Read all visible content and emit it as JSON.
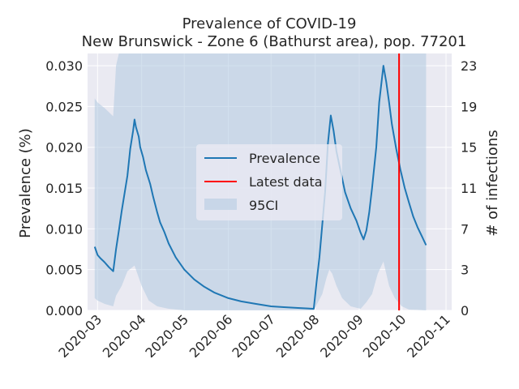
{
  "chart_data": {
    "type": "line",
    "title": "Prevalence of COVID-19",
    "subtitle": "New Brunswick - Zone 6 (Bathurst area), pop. 77201",
    "ylabel": "Prevalence (%)",
    "y2label": "# of infections",
    "xlabel": "",
    "x_ticks": [
      "2020-03",
      "2020-04",
      "2020-05",
      "2020-06",
      "2020-07",
      "2020-08",
      "2020-09",
      "2020-10",
      "2020-11"
    ],
    "y_ticks": [
      "0.000",
      "0.005",
      "0.010",
      "0.015",
      "0.020",
      "0.025",
      "0.030"
    ],
    "y2_ticks": [
      "0",
      "3",
      "7",
      "11",
      "15",
      "19",
      "23"
    ],
    "ylim": [
      0,
      0.0315
    ],
    "xlim": [
      "2020-02-23",
      "2020-11-05"
    ],
    "grid": true,
    "legend_position": "center",
    "latest_data_date": "2020-09-29",
    "series": [
      {
        "name": "Prevalence",
        "color": "#1f77b4",
        "points": [
          [
            "2020-02-28",
            0.0078
          ],
          [
            "2020-03-01",
            0.0068
          ],
          [
            "2020-03-03",
            0.0064
          ],
          [
            "2020-03-06",
            0.0059
          ],
          [
            "2020-03-09",
            0.0053
          ],
          [
            "2020-03-12",
            0.0048
          ],
          [
            "2020-03-14",
            0.0075
          ],
          [
            "2020-03-16",
            0.0098
          ],
          [
            "2020-03-18",
            0.0122
          ],
          [
            "2020-03-22",
            0.0165
          ],
          [
            "2020-03-24",
            0.0198
          ],
          [
            "2020-03-26",
            0.022
          ],
          [
            "2020-03-27",
            0.0234
          ],
          [
            "2020-03-28",
            0.0225
          ],
          [
            "2020-03-30",
            0.0213
          ],
          [
            "2020-03-31",
            0.02
          ],
          [
            "2020-04-02",
            0.0188
          ],
          [
            "2020-04-04",
            0.0172
          ],
          [
            "2020-04-07",
            0.0155
          ],
          [
            "2020-04-09",
            0.014
          ],
          [
            "2020-04-12",
            0.012
          ],
          [
            "2020-04-14",
            0.0108
          ],
          [
            "2020-04-17",
            0.0096
          ],
          [
            "2020-04-20",
            0.0082
          ],
          [
            "2020-04-25",
            0.0065
          ],
          [
            "2020-05-01",
            0.005
          ],
          [
            "2020-05-08",
            0.0038
          ],
          [
            "2020-05-15",
            0.0029
          ],
          [
            "2020-05-22",
            0.0022
          ],
          [
            "2020-06-01",
            0.0015
          ],
          [
            "2020-06-10",
            0.0011
          ],
          [
            "2020-06-20",
            0.0008
          ],
          [
            "2020-07-01",
            0.0005
          ],
          [
            "2020-07-10",
            0.0004
          ],
          [
            "2020-07-20",
            0.0003
          ],
          [
            "2020-07-31",
            0.0002
          ],
          [
            "2020-08-02",
            0.0035
          ],
          [
            "2020-08-04",
            0.0065
          ],
          [
            "2020-08-06",
            0.0105
          ],
          [
            "2020-08-08",
            0.0145
          ],
          [
            "2020-08-10",
            0.0205
          ],
          [
            "2020-08-12",
            0.0239
          ],
          [
            "2020-08-14",
            0.022
          ],
          [
            "2020-08-16",
            0.0195
          ],
          [
            "2020-08-19",
            0.017
          ],
          [
            "2020-08-22",
            0.0145
          ],
          [
            "2020-08-26",
            0.0125
          ],
          [
            "2020-08-30",
            0.011
          ],
          [
            "2020-09-02",
            0.0095
          ],
          [
            "2020-09-04",
            0.0087
          ],
          [
            "2020-09-06",
            0.0098
          ],
          [
            "2020-09-08",
            0.012
          ],
          [
            "2020-09-10",
            0.015
          ],
          [
            "2020-09-13",
            0.02
          ],
          [
            "2020-09-15",
            0.0255
          ],
          [
            "2020-09-18",
            0.03
          ],
          [
            "2020-09-20",
            0.028
          ],
          [
            "2020-09-22",
            0.0255
          ],
          [
            "2020-09-24",
            0.0228
          ],
          [
            "2020-09-27",
            0.0198
          ],
          [
            "2020-09-30",
            0.0172
          ],
          [
            "2020-10-03",
            0.015
          ],
          [
            "2020-10-06",
            0.0132
          ],
          [
            "2020-10-09",
            0.0115
          ],
          [
            "2020-10-12",
            0.0102
          ],
          [
            "2020-10-15",
            0.0091
          ],
          [
            "2020-10-18",
            0.008
          ]
        ]
      },
      {
        "name": "Latest data",
        "color": "#ff0000"
      },
      {
        "name": "95CI",
        "color": "#b0c8e0",
        "lower": [
          [
            "2020-02-28",
            0.0015
          ],
          [
            "2020-03-01",
            0.0012
          ],
          [
            "2020-03-06",
            0.0008
          ],
          [
            "2020-03-12",
            0.0005
          ],
          [
            "2020-03-14",
            0.0018
          ],
          [
            "2020-03-18",
            0.003
          ],
          [
            "2020-03-22",
            0.0048
          ],
          [
            "2020-03-27",
            0.0055
          ],
          [
            "2020-04-01",
            0.003
          ],
          [
            "2020-04-06",
            0.0012
          ],
          [
            "2020-04-12",
            0.0005
          ],
          [
            "2020-04-20",
            0.0002
          ],
          [
            "2020-05-01",
            0.0
          ],
          [
            "2020-07-31",
            0.0
          ],
          [
            "2020-08-03",
            0.001
          ],
          [
            "2020-08-06",
            0.002
          ],
          [
            "2020-08-09",
            0.004
          ],
          [
            "2020-08-11",
            0.005
          ],
          [
            "2020-08-13",
            0.0045
          ],
          [
            "2020-08-16",
            0.003
          ],
          [
            "2020-08-20",
            0.0015
          ],
          [
            "2020-08-26",
            0.0005
          ],
          [
            "2020-09-02",
            0.0002
          ],
          [
            "2020-09-06",
            0.001
          ],
          [
            "2020-09-10",
            0.002
          ],
          [
            "2020-09-14",
            0.0045
          ],
          [
            "2020-09-18",
            0.006
          ],
          [
            "2020-09-22",
            0.003
          ],
          [
            "2020-09-26",
            0.0015
          ],
          [
            "2020-10-01",
            0.0005
          ],
          [
            "2020-10-06",
            0.0001
          ],
          [
            "2020-10-18",
            0.0
          ]
        ],
        "upper": [
          [
            "2020-02-28",
            0.026
          ],
          [
            "2020-03-01",
            0.0255
          ],
          [
            "2020-03-06",
            0.0248
          ],
          [
            "2020-03-12",
            0.0238
          ],
          [
            "2020-03-14",
            0.03
          ],
          [
            "2020-03-16",
            0.033
          ],
          [
            "2020-10-18",
            0.033
          ]
        ]
      }
    ]
  }
}
